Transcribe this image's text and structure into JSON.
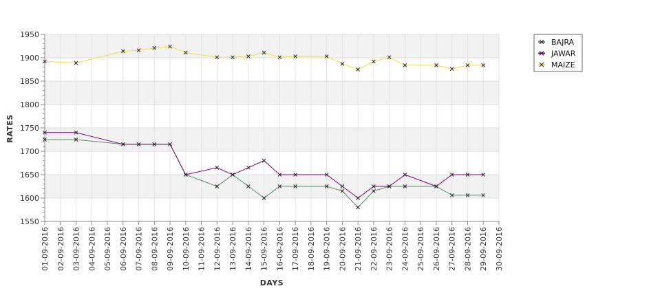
{
  "chart_data": {
    "type": "line",
    "title": "",
    "xlabel": "DAYS",
    "ylabel": "RATES",
    "categories": [
      "01-09-2016",
      "02-09-2016",
      "03-09-2016",
      "04-09-2016",
      "05-09-2016",
      "06-09-2016",
      "07-09-2016",
      "08-09-2016",
      "09-09-2016",
      "10-09-2016",
      "11-09-2016",
      "12-09-2016",
      "13-09-2016",
      "14-09-2016",
      "15-09-2016",
      "16-09-2016",
      "17-09-2016",
      "18-09-2016",
      "19-09-2016",
      "20-09-2016",
      "21-09-2016",
      "22-09-2016",
      "23-09-2016",
      "24-09-2016",
      "25-09-2016",
      "26-09-2016",
      "27-09-2016",
      "28-09-2016",
      "29-09-2016",
      "30-09-2016"
    ],
    "ylim": [
      1550,
      1950
    ],
    "yticks": [
      1550,
      1600,
      1650,
      1700,
      1750,
      1800,
      1850,
      1900,
      1950
    ],
    "legend_position": "top-right",
    "grid": true,
    "series": [
      {
        "name": "BAJRA",
        "color": "#5a8a6a",
        "points": [
          [
            "01-09-2016",
            1725
          ],
          [
            "03-09-2016",
            1725
          ],
          [
            "06-09-2016",
            1715
          ],
          [
            "07-09-2016",
            1715
          ],
          [
            "08-09-2016",
            1715
          ],
          [
            "09-09-2016",
            1715
          ],
          [
            "10-09-2016",
            1650
          ],
          [
            "12-09-2016",
            1625
          ],
          [
            "13-09-2016",
            1650
          ],
          [
            "14-09-2016",
            1625
          ],
          [
            "15-09-2016",
            1600
          ],
          [
            "16-09-2016",
            1625
          ],
          [
            "17-09-2016",
            1625
          ],
          [
            "19-09-2016",
            1625
          ],
          [
            "20-09-2016",
            1615
          ],
          [
            "21-09-2016",
            1580
          ],
          [
            "22-09-2016",
            1615
          ],
          [
            "23-09-2016",
            1625
          ],
          [
            "24-09-2016",
            1625
          ],
          [
            "26-09-2016",
            1625
          ],
          [
            "27-09-2016",
            1606
          ],
          [
            "28-09-2016",
            1606
          ],
          [
            "29-09-2016",
            1606
          ]
        ]
      },
      {
        "name": "JAWAR",
        "color": "#800080",
        "points": [
          [
            "01-09-2016",
            1740
          ],
          [
            "03-09-2016",
            1740
          ],
          [
            "06-09-2016",
            1715
          ],
          [
            "07-09-2016",
            1715
          ],
          [
            "08-09-2016",
            1715
          ],
          [
            "09-09-2016",
            1715
          ],
          [
            "10-09-2016",
            1650
          ],
          [
            "12-09-2016",
            1665
          ],
          [
            "13-09-2016",
            1650
          ],
          [
            "14-09-2016",
            1665
          ],
          [
            "15-09-2016",
            1680
          ],
          [
            "16-09-2016",
            1650
          ],
          [
            "17-09-2016",
            1650
          ],
          [
            "19-09-2016",
            1650
          ],
          [
            "20-09-2016",
            1625
          ],
          [
            "21-09-2016",
            1600
          ],
          [
            "22-09-2016",
            1625
          ],
          [
            "23-09-2016",
            1625
          ],
          [
            "24-09-2016",
            1650
          ],
          [
            "26-09-2016",
            1625
          ],
          [
            "27-09-2016",
            1650
          ],
          [
            "28-09-2016",
            1650
          ],
          [
            "29-09-2016",
            1650
          ]
        ]
      },
      {
        "name": "MAIZE",
        "color": "#f0e040",
        "points": [
          [
            "01-09-2016",
            1892
          ],
          [
            "03-09-2016",
            1889
          ],
          [
            "06-09-2016",
            1914
          ],
          [
            "07-09-2016",
            1916
          ],
          [
            "08-09-2016",
            1921
          ],
          [
            "09-09-2016",
            1924
          ],
          [
            "10-09-2016",
            1911
          ],
          [
            "12-09-2016",
            1901
          ],
          [
            "13-09-2016",
            1901
          ],
          [
            "14-09-2016",
            1903
          ],
          [
            "15-09-2016",
            1911
          ],
          [
            "16-09-2016",
            1901
          ],
          [
            "17-09-2016",
            1903
          ],
          [
            "19-09-2016",
            1903
          ],
          [
            "20-09-2016",
            1887
          ],
          [
            "21-09-2016",
            1875
          ],
          [
            "22-09-2016",
            1892
          ],
          [
            "23-09-2016",
            1901
          ],
          [
            "24-09-2016",
            1884
          ],
          [
            "26-09-2016",
            1884
          ],
          [
            "27-09-2016",
            1876
          ],
          [
            "28-09-2016",
            1884
          ],
          [
            "29-09-2016",
            1884
          ]
        ]
      }
    ]
  }
}
